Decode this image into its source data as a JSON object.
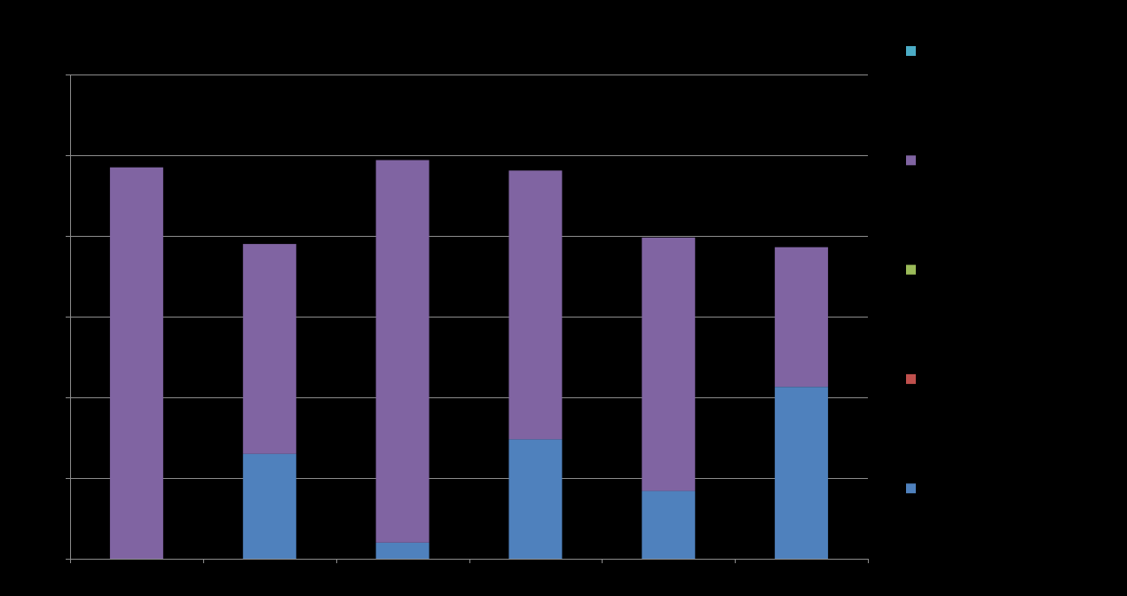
{
  "chart_data": {
    "type": "bar",
    "stacked": true,
    "categories": [
      "",
      "",
      "",
      "",
      "",
      ""
    ],
    "series": [
      {
        "color": "#4F81BD",
        "values": [
          0,
          1.3,
          0.2,
          1.48,
          0.84,
          2.13
        ]
      },
      {
        "color": "#C0504D",
        "values": [
          0,
          0,
          0,
          0,
          0,
          0
        ]
      },
      {
        "color": "#9BBB59",
        "values": [
          0,
          0,
          0,
          0,
          0,
          0
        ]
      },
      {
        "color": "#8064A2",
        "values": [
          4.85,
          2.6,
          4.74,
          3.33,
          3.14,
          1.73
        ]
      },
      {
        "color": "#4BACC6",
        "values": [
          0,
          0,
          0,
          0,
          0,
          0
        ]
      }
    ],
    "ylim": [
      0,
      6
    ],
    "yticks": [
      0,
      1,
      2,
      3,
      4,
      5,
      6
    ],
    "grid": true,
    "legend_position": "right",
    "legend_order": [
      4,
      3,
      2,
      1,
      0
    ],
    "title": "",
    "xlabel": "",
    "ylabel": ""
  },
  "colors": {
    "background": "#000000",
    "gridline": "#8c8c8c",
    "axis": "#8c8c8c"
  }
}
